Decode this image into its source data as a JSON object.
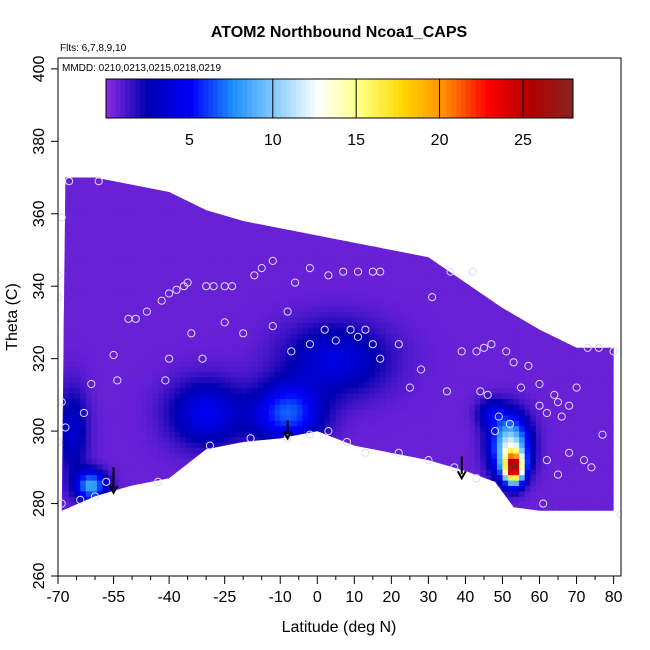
{
  "chart_data": {
    "type": "heatmap",
    "title": "ATOM2 Northbound Ncoa1_CAPS",
    "annotations": [
      "Flts: 6,7,8,9,10",
      "MMDD: 0210,0213,0215,0218,0219"
    ],
    "xlabel": "Latitude (deg N)",
    "ylabel": "Theta (C)",
    "xlim": [
      -70,
      82
    ],
    "ylim": [
      260,
      403
    ],
    "x_ticks": [
      -70,
      -55,
      -40,
      -25,
      -10,
      0,
      10,
      20,
      30,
      40,
      50,
      60,
      70,
      80
    ],
    "x_tick_labels": [
      "-70",
      "-55",
      "-40",
      "-25",
      "-10",
      "0",
      "10",
      "20",
      "30",
      "40",
      "50",
      "60",
      "70",
      "80"
    ],
    "x_minor_ticks": [
      -65,
      -60,
      -50,
      -45,
      -35,
      -30,
      -20,
      -15,
      -5,
      5,
      15,
      25,
      35,
      45,
      55,
      65,
      75
    ],
    "y_ticks": [
      260,
      280,
      300,
      320,
      340,
      360,
      380,
      400
    ],
    "y_tick_labels": [
      "260",
      "280",
      "300",
      "320",
      "340",
      "360",
      "380",
      "400"
    ],
    "colorbar": {
      "range": [
        0,
        28
      ],
      "ticks": [
        5,
        10,
        15,
        20,
        25
      ],
      "tick_labels": [
        "5",
        "10",
        "15",
        "20",
        "25"
      ],
      "colors": [
        "#8a2be2",
        "#0000b0",
        "#0000ff",
        "#1e90ff",
        "#87cefa",
        "#ffffff",
        "#ffff80",
        "#ffd700",
        "#ff8c00",
        "#ff0000",
        "#b00000",
        "#8b2323"
      ]
    },
    "field": {
      "background_value": 0.6,
      "upper_boundary": [
        [
          -68,
          370
        ],
        [
          -60,
          370
        ],
        [
          -50,
          368
        ],
        [
          -40,
          366
        ],
        [
          -30,
          361
        ],
        [
          -20,
          358
        ],
        [
          -10,
          356
        ],
        [
          0,
          354
        ],
        [
          10,
          352
        ],
        [
          20,
          350
        ],
        [
          30,
          348
        ],
        [
          40,
          341
        ],
        [
          50,
          334
        ],
        [
          60,
          328
        ],
        [
          70,
          323
        ],
        [
          80,
          323
        ]
      ],
      "lower_boundary": [
        [
          -69,
          278
        ],
        [
          -60,
          282
        ],
        [
          -50,
          285
        ],
        [
          -40,
          287
        ],
        [
          -30,
          295
        ],
        [
          -20,
          297
        ],
        [
          -10,
          298
        ],
        [
          0,
          300
        ],
        [
          10,
          296
        ],
        [
          20,
          294
        ],
        [
          30,
          292
        ],
        [
          40,
          289
        ],
        [
          48,
          286
        ],
        [
          53,
          279
        ],
        [
          60,
          278
        ],
        [
          80,
          278
        ]
      ],
      "blobs": [
        {
          "lat": 53,
          "theta": 290,
          "value": 22,
          "sx": 2.5,
          "st": 4
        },
        {
          "lat": 52,
          "theta": 296,
          "value": 11,
          "sx": 5,
          "st": 8
        },
        {
          "lat": -61,
          "theta": 285,
          "value": 8,
          "sx": 4,
          "st": 4
        },
        {
          "lat": -8,
          "theta": 305,
          "value": 6,
          "sx": 9,
          "st": 8
        },
        {
          "lat": 5,
          "theta": 320,
          "value": 3.5,
          "sx": 14,
          "st": 10
        },
        {
          "lat": -30,
          "theta": 305,
          "value": 4,
          "sx": 10,
          "st": 9
        },
        {
          "lat": -66,
          "theta": 300,
          "value": 3,
          "sx": 4,
          "st": 12
        },
        {
          "lat": 47,
          "theta": 305,
          "value": 3,
          "sx": 4,
          "st": 4
        }
      ]
    },
    "observations": [
      [
        -67,
        369
      ],
      [
        -59,
        369
      ],
      [
        -69,
        359
      ],
      [
        -70,
        343
      ],
      [
        -70,
        337
      ],
      [
        -69,
        308
      ],
      [
        -68,
        301
      ],
      [
        -70,
        297
      ],
      [
        -63,
        305
      ],
      [
        -61,
        313
      ],
      [
        -55,
        321
      ],
      [
        -51,
        331
      ],
      [
        -49,
        331
      ],
      [
        -46,
        333
      ],
      [
        -42,
        336
      ],
      [
        -40,
        338
      ],
      [
        -38,
        339
      ],
      [
        -36,
        340
      ],
      [
        -35,
        341
      ],
      [
        -30,
        340
      ],
      [
        -28,
        340
      ],
      [
        -25,
        340
      ],
      [
        -23,
        340
      ],
      [
        -17,
        343
      ],
      [
        -15,
        345
      ],
      [
        -12,
        347
      ],
      [
        -25,
        330
      ],
      [
        -34,
        327
      ],
      [
        -20,
        327
      ],
      [
        -31,
        320
      ],
      [
        -12,
        329
      ],
      [
        -8,
        333
      ],
      [
        -6,
        341
      ],
      [
        -2,
        345
      ],
      [
        3,
        343
      ],
      [
        7,
        344
      ],
      [
        11,
        344
      ],
      [
        15,
        344
      ],
      [
        17,
        344
      ],
      [
        -7,
        322
      ],
      [
        -2,
        324
      ],
      [
        2,
        328
      ],
      [
        5,
        325
      ],
      [
        9,
        328
      ],
      [
        11,
        326
      ],
      [
        13,
        328
      ],
      [
        15,
        324
      ],
      [
        17,
        320
      ],
      [
        22,
        324
      ],
      [
        28,
        317
      ],
      [
        36,
        344
      ],
      [
        42,
        344
      ],
      [
        31,
        337
      ],
      [
        25,
        312
      ],
      [
        35,
        311
      ],
      [
        39,
        322
      ],
      [
        43,
        322
      ],
      [
        45,
        323
      ],
      [
        47,
        324
      ],
      [
        51,
        322
      ],
      [
        53,
        319
      ],
      [
        57,
        318
      ],
      [
        60,
        313
      ],
      [
        64,
        310
      ],
      [
        65,
        308
      ],
      [
        66,
        304
      ],
      [
        62,
        305
      ],
      [
        68,
        307
      ],
      [
        70,
        312
      ],
      [
        73,
        323
      ],
      [
        76,
        323
      ],
      [
        80,
        322
      ],
      [
        82,
        277
      ],
      [
        48,
        300
      ],
      [
        49,
        304
      ],
      [
        52,
        302
      ],
      [
        44,
        311
      ],
      [
        55,
        312
      ],
      [
        60,
        307
      ],
      [
        68,
        294
      ],
      [
        72,
        292
      ],
      [
        74,
        290
      ],
      [
        77,
        299
      ],
      [
        62,
        292
      ],
      [
        65,
        288
      ],
      [
        61,
        280
      ],
      [
        46,
        310
      ],
      [
        -54,
        314
      ],
      [
        -41,
        314
      ],
      [
        -40,
        320
      ],
      [
        -57,
        286
      ],
      [
        -60,
        282
      ],
      [
        -64,
        281
      ],
      [
        -43,
        286
      ],
      [
        -29,
        296
      ],
      [
        -18,
        298
      ],
      [
        -8,
        298
      ],
      [
        -2,
        299
      ],
      [
        3,
        300
      ],
      [
        8,
        297
      ],
      [
        13,
        294
      ],
      [
        22,
        294
      ],
      [
        30,
        292
      ],
      [
        37,
        290
      ],
      [
        43,
        287
      ],
      [
        -69,
        280
      ]
    ],
    "arrows": [
      {
        "lat": -55,
        "theta_from": 290,
        "theta_to": 283
      },
      {
        "lat": -8,
        "theta_from": 303,
        "theta_to": 298
      },
      {
        "lat": 39,
        "theta_from": 293,
        "theta_to": 287
      }
    ]
  }
}
